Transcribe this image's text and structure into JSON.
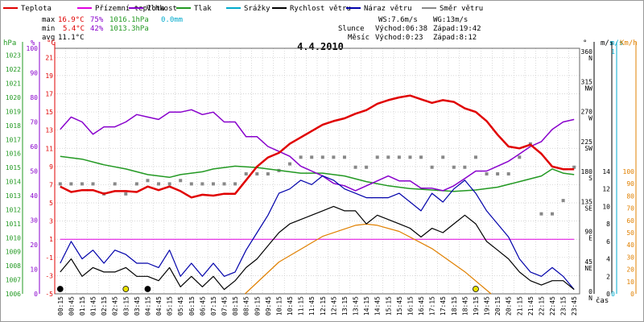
{
  "chart_data": {
    "type": "line",
    "title": "4.4.2010",
    "legend": [
      {
        "key": "temp",
        "label": "Teplota",
        "color": "#e00000"
      },
      {
        "key": "dew",
        "label": "Přízemní teplota",
        "color": "#e000e0"
      },
      {
        "key": "hum",
        "label": "Vlhkost",
        "color": "#8800cc"
      },
      {
        "key": "press",
        "label": "Tlak",
        "color": "#229922"
      },
      {
        "key": "rain",
        "label": "Srážky",
        "color": "#00aacc"
      },
      {
        "key": "wind",
        "label": "Rychlost větru",
        "color": "#000000"
      },
      {
        "key": "gust",
        "label": "Náraz větru",
        "color": "#0000aa"
      },
      {
        "key": "dir",
        "label": "Směr větru",
        "color": "#888888"
      }
    ],
    "stats": {
      "max": {
        "label": "max",
        "temp": "16.9°C",
        "hum": "75%",
        "press": "1016.1hPa",
        "rain": "0.0mm"
      },
      "min": {
        "label": "min",
        "temp": "5.4°C",
        "hum": "42%",
        "press": "1013.3hPa"
      },
      "avg": {
        "label": "avg",
        "temp": "11.1°C"
      }
    },
    "info": {
      "ws": "WS:7.6m/s",
      "wg": "WG:13m/s",
      "sun_label": "Slunce",
      "sun_rise": "Východ:06:38",
      "sun_set": "Západ:19:42",
      "moon_label": "Měsíc",
      "moon_rise": "Východ:0:23",
      "moon_set": "Západ:8:12"
    },
    "axis_titles": {
      "hpa": "hPa",
      "pct": "%",
      "degc": "°C",
      "dir": "°",
      "ms1": "m/s",
      "ms2": "m/s",
      "kmh": "Km/h",
      "time": "čas"
    },
    "axes": {
      "hpa": [
        "1006",
        "1007",
        "1008",
        "1009",
        "1010",
        "1011",
        "1012",
        "1013",
        "1014",
        "1015",
        "1016",
        "1017",
        "1018",
        "1019",
        "1020",
        "1021",
        "1022",
        "1023"
      ],
      "pct": [
        "0",
        "10",
        "20",
        "30",
        "40",
        "50",
        "60",
        "70",
        "80",
        "90",
        "100"
      ],
      "degc": [
        "-5",
        "-3",
        "-1",
        "1",
        "3",
        "5",
        "7",
        "9",
        "11",
        "13",
        "15",
        "17",
        "19",
        "21"
      ],
      "dir": [
        "0\nN",
        "45\nNE",
        "90\nE",
        "135\nSE",
        "180\nS",
        "225\nSW",
        "270\nW",
        "315\nNW",
        "360\nN"
      ],
      "ms": [
        "0",
        "2",
        "4",
        "6",
        "8",
        "10",
        "12",
        "14"
      ],
      "kmh": [
        "0",
        "10",
        "20",
        "30",
        "40",
        "50",
        "60",
        "70",
        "80",
        "90",
        "100"
      ],
      "ms_right": [
        "0",
        "1"
      ]
    },
    "x_labels": [
      "00:15",
      "00:45",
      "01:15",
      "01:45",
      "02:15",
      "02:45",
      "03:15",
      "03:45",
      "04:15",
      "04:45",
      "05:15",
      "05:45",
      "06:15",
      "06:45",
      "07:15",
      "07:45",
      "08:15",
      "08:45",
      "09:15",
      "09:45",
      "10:15",
      "10:45",
      "11:15",
      "11:45",
      "12:15",
      "12:45",
      "13:15",
      "13:45",
      "14:15",
      "14:45",
      "15:15",
      "15:45",
      "16:15",
      "16:45",
      "17:15",
      "17:45",
      "18:15",
      "18:45",
      "19:15",
      "19:45",
      "20:15",
      "20:45",
      "21:15",
      "21:45",
      "22:15",
      "22:45",
      "23:15",
      "23:45"
    ],
    "xlim": [
      0,
      48
    ],
    "series": {
      "temp": [
        [
          0,
          6.8
        ],
        [
          1,
          6.2
        ],
        [
          2,
          6.4
        ],
        [
          3,
          6.4
        ],
        [
          4,
          6.0
        ],
        [
          5,
          6.3
        ],
        [
          6,
          6.3
        ],
        [
          7,
          6.2
        ],
        [
          8,
          6.8
        ],
        [
          9,
          6.4
        ],
        [
          10,
          6.8
        ],
        [
          11,
          6.3
        ],
        [
          12,
          5.6
        ],
        [
          13,
          5.9
        ],
        [
          14,
          5.8
        ],
        [
          15,
          6.0
        ],
        [
          16,
          6.0
        ],
        [
          17,
          7.5
        ],
        [
          18,
          9.0
        ],
        [
          19,
          10.0
        ],
        [
          20,
          10.5
        ],
        [
          21,
          11.5
        ],
        [
          22,
          12.2
        ],
        [
          23,
          12.9
        ],
        [
          24,
          13.6
        ],
        [
          25,
          14.0
        ],
        [
          26,
          14.3
        ],
        [
          27,
          14.8
        ],
        [
          28,
          15.2
        ],
        [
          29,
          15.9
        ],
        [
          30,
          16.3
        ],
        [
          31,
          16.6
        ],
        [
          32,
          16.8
        ],
        [
          33,
          16.4
        ],
        [
          34,
          16.0
        ],
        [
          35,
          16.3
        ],
        [
          36,
          16.1
        ],
        [
          37,
          15.4
        ],
        [
          38,
          15.0
        ],
        [
          39,
          14.0
        ],
        [
          40,
          12.5
        ],
        [
          41,
          11.2
        ],
        [
          42,
          11.0
        ],
        [
          43,
          11.4
        ],
        [
          44,
          10.4
        ],
        [
          45,
          9.0
        ],
        [
          46,
          8.7
        ],
        [
          47,
          8.7
        ]
      ],
      "hum": [
        [
          0,
          67
        ],
        [
          1,
          72
        ],
        [
          2,
          70
        ],
        [
          3,
          65
        ],
        [
          4,
          68
        ],
        [
          5,
          68
        ],
        [
          6,
          70
        ],
        [
          7,
          73
        ],
        [
          8,
          72
        ],
        [
          9,
          71
        ],
        [
          10,
          74
        ],
        [
          11,
          74
        ],
        [
          12,
          75
        ],
        [
          13,
          73
        ],
        [
          14,
          74
        ],
        [
          15,
          70
        ],
        [
          16,
          70
        ],
        [
          17,
          64
        ],
        [
          18,
          64
        ],
        [
          19,
          60
        ],
        [
          20,
          58
        ],
        [
          21,
          56
        ],
        [
          22,
          52
        ],
        [
          23,
          50
        ],
        [
          24,
          48
        ],
        [
          25,
          45
        ],
        [
          26,
          44
        ],
        [
          27,
          42
        ],
        [
          28,
          44
        ],
        [
          29,
          46
        ],
        [
          30,
          48
        ],
        [
          31,
          46
        ],
        [
          32,
          46
        ],
        [
          33,
          43
        ],
        [
          34,
          43
        ],
        [
          35,
          42
        ],
        [
          36,
          44
        ],
        [
          37,
          47
        ],
        [
          38,
          50
        ],
        [
          39,
          50
        ],
        [
          40,
          52
        ],
        [
          41,
          54
        ],
        [
          42,
          57
        ],
        [
          43,
          60
        ],
        [
          44,
          62
        ],
        [
          45,
          67
        ],
        [
          46,
          70
        ],
        [
          47,
          71
        ]
      ],
      "press": [
        [
          0,
          1015.8
        ],
        [
          2,
          1015.6
        ],
        [
          4,
          1015.2
        ],
        [
          6,
          1014.9
        ],
        [
          8,
          1014.5
        ],
        [
          10,
          1014.3
        ],
        [
          11,
          1014.5
        ],
        [
          13,
          1014.7
        ],
        [
          14,
          1014.9
        ],
        [
          16,
          1015.1
        ],
        [
          18,
          1015.0
        ],
        [
          20,
          1014.8
        ],
        [
          22,
          1014.6
        ],
        [
          24,
          1014.6
        ],
        [
          26,
          1014.4
        ],
        [
          28,
          1014.0
        ],
        [
          30,
          1013.7
        ],
        [
          32,
          1013.5
        ],
        [
          34,
          1013.4
        ],
        [
          36,
          1013.3
        ],
        [
          38,
          1013.4
        ],
        [
          40,
          1013.6
        ],
        [
          42,
          1014.0
        ],
        [
          44,
          1014.4
        ],
        [
          45,
          1014.9
        ],
        [
          46,
          1014.6
        ],
        [
          47,
          1014.5
        ]
      ],
      "dew": [
        [
          0,
          1.0
        ],
        [
          47,
          1.0
        ]
      ],
      "wind": [
        [
          0,
          2.5
        ],
        [
          1,
          4.0
        ],
        [
          2,
          2.0
        ],
        [
          3,
          3.0
        ],
        [
          4,
          2.5
        ],
        [
          5,
          2.5
        ],
        [
          6,
          3.0
        ],
        [
          7,
          2.0
        ],
        [
          8,
          2.0
        ],
        [
          9,
          1.5
        ],
        [
          10,
          3.0
        ],
        [
          11,
          0.8
        ],
        [
          12,
          2.0
        ],
        [
          13,
          0.8
        ],
        [
          14,
          2.0
        ],
        [
          15,
          0.5
        ],
        [
          16,
          1.5
        ],
        [
          17,
          3.0
        ],
        [
          18,
          4.0
        ],
        [
          19,
          5.5
        ],
        [
          20,
          7.0
        ],
        [
          21,
          8.0
        ],
        [
          22,
          8.5
        ],
        [
          23,
          9.0
        ],
        [
          24,
          9.5
        ],
        [
          25,
          10.0
        ],
        [
          26,
          9.5
        ],
        [
          27,
          9.5
        ],
        [
          28,
          8.0
        ],
        [
          29,
          9.0
        ],
        [
          30,
          8.5
        ],
        [
          31,
          8.0
        ],
        [
          32,
          7.5
        ],
        [
          33,
          6.5
        ],
        [
          34,
          7.5
        ],
        [
          35,
          7.0
        ],
        [
          36,
          8.0
        ],
        [
          37,
          9.0
        ],
        [
          38,
          8.0
        ],
        [
          39,
          6.0
        ],
        [
          40,
          5.0
        ],
        [
          41,
          4.0
        ],
        [
          42,
          2.5
        ],
        [
          43,
          1.5
        ],
        [
          44,
          1.0
        ],
        [
          45,
          1.5
        ],
        [
          46,
          1.5
        ],
        [
          47,
          0.5
        ]
      ],
      "gust": [
        [
          0,
          3.5
        ],
        [
          1,
          6.0
        ],
        [
          2,
          4.0
        ],
        [
          3,
          5.0
        ],
        [
          4,
          3.5
        ],
        [
          5,
          5.0
        ],
        [
          6,
          4.5
        ],
        [
          7,
          3.5
        ],
        [
          8,
          3.5
        ],
        [
          9,
          3.0
        ],
        [
          10,
          5.0
        ],
        [
          11,
          2.0
        ],
        [
          12,
          3.5
        ],
        [
          13,
          2.0
        ],
        [
          14,
          3.5
        ],
        [
          15,
          2.0
        ],
        [
          16,
          2.5
        ],
        [
          17,
          5.0
        ],
        [
          18,
          7.0
        ],
        [
          19,
          9.0
        ],
        [
          20,
          11.5
        ],
        [
          21,
          12.0
        ],
        [
          22,
          13.0
        ],
        [
          23,
          12.5
        ],
        [
          24,
          13.5
        ],
        [
          25,
          13.0
        ],
        [
          26,
          12.0
        ],
        [
          27,
          11.5
        ],
        [
          28,
          11.0
        ],
        [
          29,
          11.0
        ],
        [
          30,
          11.0
        ],
        [
          31,
          11.5
        ],
        [
          32,
          10.5
        ],
        [
          33,
          9.5
        ],
        [
          34,
          11.5
        ],
        [
          35,
          10.5
        ],
        [
          36,
          12.0
        ],
        [
          37,
          13.0
        ],
        [
          38,
          11.5
        ],
        [
          39,
          9.5
        ],
        [
          40,
          8.0
        ],
        [
          41,
          6.5
        ],
        [
          42,
          4.0
        ],
        [
          43,
          2.5
        ],
        [
          44,
          2.0
        ],
        [
          45,
          3.0
        ],
        [
          46,
          2.0
        ],
        [
          47,
          0.5
        ]
      ],
      "sun": [
        [
          16.9,
          0
        ],
        [
          20,
          26
        ],
        [
          24,
          47
        ],
        [
          27,
          56
        ],
        [
          28,
          57
        ],
        [
          29,
          56
        ],
        [
          31,
          51
        ],
        [
          34,
          37
        ],
        [
          37,
          18
        ],
        [
          39.4,
          0
        ]
      ],
      "dir_points": [
        [
          0,
          165
        ],
        [
          1,
          165
        ],
        [
          2,
          165
        ],
        [
          3,
          165
        ],
        [
          4,
          150
        ],
        [
          5,
          165
        ],
        [
          6,
          150
        ],
        [
          7,
          165
        ],
        [
          8,
          170
        ],
        [
          9,
          165
        ],
        [
          10,
          165
        ],
        [
          11,
          170
        ],
        [
          12,
          165
        ],
        [
          13,
          165
        ],
        [
          14,
          165
        ],
        [
          15,
          165
        ],
        [
          16,
          165
        ],
        [
          17,
          180
        ],
        [
          18,
          180
        ],
        [
          19,
          180
        ],
        [
          20,
          185
        ],
        [
          21,
          195
        ],
        [
          22,
          205
        ],
        [
          23,
          205
        ],
        [
          24,
          205
        ],
        [
          25,
          205
        ],
        [
          26,
          205
        ],
        [
          27,
          190
        ],
        [
          28,
          190
        ],
        [
          29,
          205
        ],
        [
          30,
          205
        ],
        [
          31,
          205
        ],
        [
          32,
          205
        ],
        [
          33,
          205
        ],
        [
          34,
          190
        ],
        [
          35,
          205
        ],
        [
          36,
          190
        ],
        [
          37,
          190
        ],
        [
          38,
          205
        ],
        [
          39,
          180
        ],
        [
          40,
          180
        ],
        [
          41,
          180
        ],
        [
          42,
          205
        ],
        [
          43,
          225
        ],
        [
          44,
          120
        ],
        [
          45,
          120
        ],
        [
          46,
          140
        ],
        [
          47,
          190
        ]
      ]
    }
  }
}
